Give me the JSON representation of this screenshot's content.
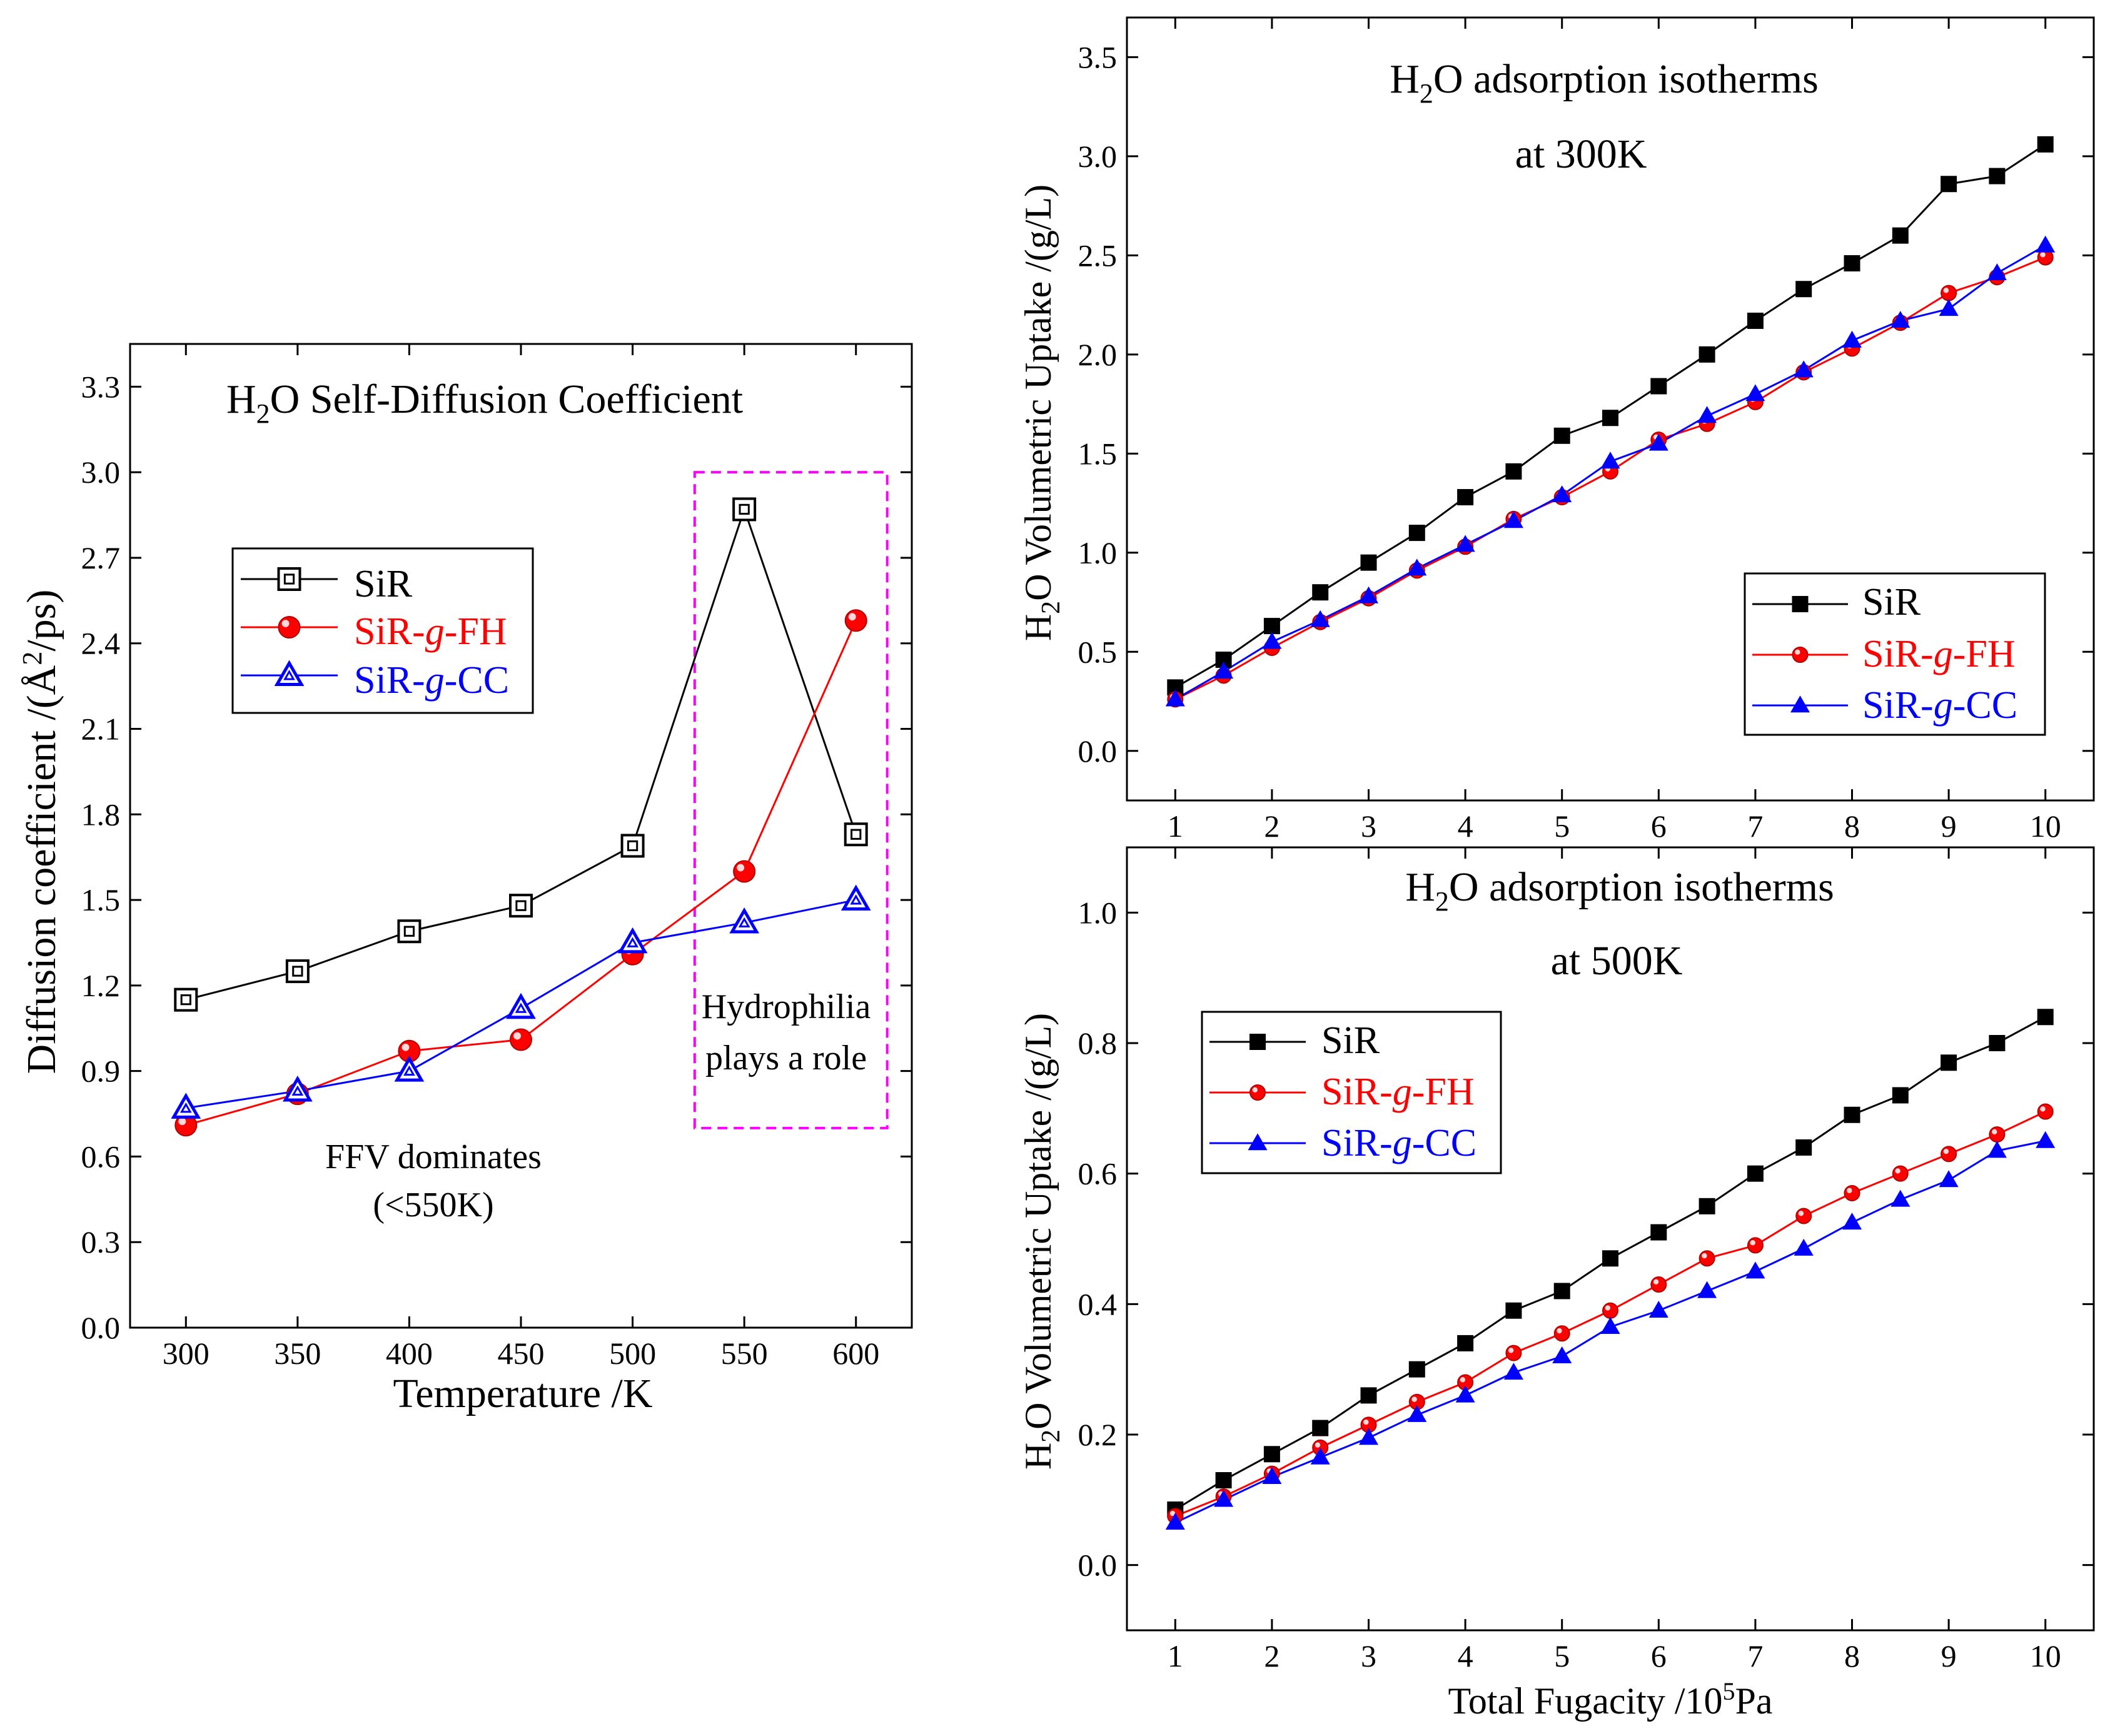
{
  "chart_data": [
    {
      "id": "diffusion",
      "type": "line",
      "title_parts": [
        "H",
        "2",
        "O Self-Diffusion Coefficient"
      ],
      "xlabel": "Temperature /K",
      "ylabel_parts": [
        "Diffusion coefficient /(",
        "Å",
        "2",
        "/ps)"
      ],
      "x": [
        300,
        350,
        400,
        450,
        500,
        550,
        600
      ],
      "xlim": [
        275,
        625
      ],
      "ylim": [
        0,
        3.45
      ],
      "xticks": [
        "300",
        "350",
        "400",
        "450",
        "500",
        "550",
        "600"
      ],
      "yticks": [
        "0.0",
        "0.3",
        "0.6",
        "0.9",
        "1.2",
        "1.5",
        "1.8",
        "2.1",
        "2.4",
        "2.7",
        "3.0",
        "3.3"
      ],
      "series": [
        {
          "name": "SiR",
          "color": "#000000",
          "marker": "square-open",
          "values": [
            1.15,
            1.25,
            1.39,
            1.48,
            1.69,
            2.87,
            1.73
          ]
        },
        {
          "name": "SiR-g-FH",
          "name_parts": [
            "SiR-",
            "g",
            "-FH"
          ],
          "color": "#ff0000",
          "marker": "sphere",
          "values": [
            0.71,
            0.82,
            0.97,
            1.01,
            1.31,
            1.6,
            2.48
          ]
        },
        {
          "name": "SiR-g-CC",
          "name_parts": [
            "SiR-",
            "g",
            "-CC"
          ],
          "color": "#0000ff",
          "marker": "triangle-open",
          "values": [
            0.77,
            0.83,
            0.9,
            1.12,
            1.35,
            1.42,
            1.5
          ]
        }
      ],
      "annotations": {
        "ffv_line1": "FFV dominates",
        "ffv_line2": "(<550K)",
        "hydro_line1": "Hydrophilia",
        "hydro_line2": "plays a role",
        "highlight_x_range": [
          525,
          600
        ],
        "highlight_y_range": [
          0.7,
          3.0
        ],
        "highlight_color": "#ff00ff"
      },
      "legend": "upper-left"
    },
    {
      "id": "iso300",
      "type": "line",
      "title_line1_parts": [
        "H",
        "2",
        "O adsorption isotherms"
      ],
      "title_line2": "at 300K",
      "xlabel": "",
      "ylabel_parts": [
        "H",
        "2",
        "O Volumetric Uptake /(g/L)"
      ],
      "x": [
        1,
        1.5,
        2,
        2.5,
        3,
        3.5,
        4,
        4.5,
        5,
        5.5,
        6,
        6.5,
        7,
        7.5,
        8,
        8.5,
        9,
        9.5,
        10
      ],
      "xlim": [
        0.5,
        10.5
      ],
      "ylim": [
        -0.25,
        3.7
      ],
      "xticks": [
        "1",
        "2",
        "3",
        "4",
        "5",
        "6",
        "7",
        "8",
        "9",
        "10"
      ],
      "yticks": [
        "0.0",
        "0.5",
        "1.0",
        "1.5",
        "2.0",
        "2.5",
        "3.0",
        "3.5"
      ],
      "series": [
        {
          "name": "SiR",
          "color": "#000000",
          "marker": "square",
          "values": [
            0.32,
            0.46,
            0.63,
            0.8,
            0.95,
            1.1,
            1.28,
            1.41,
            1.59,
            1.68,
            1.84,
            2.0,
            2.17,
            2.33,
            2.46,
            2.6,
            2.86,
            2.9,
            3.06
          ]
        },
        {
          "name": "SiR-g-FH",
          "name_parts": [
            "SiR-",
            "g",
            "-FH"
          ],
          "color": "#ff0000",
          "marker": "sphere",
          "values": [
            0.26,
            0.38,
            0.52,
            0.65,
            0.77,
            0.91,
            1.03,
            1.17,
            1.28,
            1.41,
            1.57,
            1.65,
            1.76,
            1.91,
            2.03,
            2.16,
            2.31,
            2.39,
            2.49
          ]
        },
        {
          "name": "SiR-g-CC",
          "name_parts": [
            "SiR-",
            "g",
            "-CC"
          ],
          "color": "#0000ff",
          "marker": "triangle",
          "values": [
            0.26,
            0.4,
            0.55,
            0.66,
            0.78,
            0.92,
            1.04,
            1.16,
            1.29,
            1.46,
            1.55,
            1.69,
            1.8,
            1.92,
            2.07,
            2.17,
            2.23,
            2.41,
            2.55
          ]
        }
      ],
      "legend": "lower-right"
    },
    {
      "id": "iso500",
      "type": "line",
      "title_line1_parts": [
        "H",
        "2",
        "O adsorption isotherms"
      ],
      "title_line2": "at 500K",
      "xlabel_parts": [
        "Total Fugacity /10",
        "5",
        "Pa"
      ],
      "ylabel_parts": [
        "H",
        "2",
        "O Volumetric Uptake /(g/L)"
      ],
      "x": [
        1,
        1.5,
        2,
        2.5,
        3,
        3.5,
        4,
        4.5,
        5,
        5.5,
        6,
        6.5,
        7,
        7.5,
        8,
        8.5,
        9,
        9.5,
        10
      ],
      "xlim": [
        0.5,
        10.5
      ],
      "ylim": [
        -0.1,
        1.1
      ],
      "xticks": [
        "1",
        "2",
        "3",
        "4",
        "5",
        "6",
        "7",
        "8",
        "9",
        "10"
      ],
      "yticks": [
        "0.0",
        "0.2",
        "0.4",
        "0.6",
        "0.8",
        "1.0"
      ],
      "series": [
        {
          "name": "SiR",
          "color": "#000000",
          "marker": "square",
          "values": [
            0.085,
            0.13,
            0.17,
            0.21,
            0.26,
            0.3,
            0.34,
            0.39,
            0.42,
            0.47,
            0.51,
            0.55,
            0.6,
            0.64,
            0.69,
            0.72,
            0.77,
            0.8,
            0.84
          ]
        },
        {
          "name": "SiR-g-FH",
          "name_parts": [
            "SiR-",
            "g",
            "-FH"
          ],
          "color": "#ff0000",
          "marker": "sphere",
          "values": [
            0.075,
            0.105,
            0.14,
            0.18,
            0.215,
            0.25,
            0.28,
            0.325,
            0.355,
            0.39,
            0.43,
            0.47,
            0.49,
            0.535,
            0.57,
            0.6,
            0.63,
            0.66,
            0.695
          ]
        },
        {
          "name": "SiR-g-CC",
          "name_parts": [
            "SiR-",
            "g",
            "-CC"
          ],
          "color": "#0000ff",
          "marker": "triangle",
          "values": [
            0.065,
            0.1,
            0.135,
            0.165,
            0.195,
            0.23,
            0.26,
            0.295,
            0.32,
            0.365,
            0.39,
            0.42,
            0.45,
            0.485,
            0.525,
            0.56,
            0.59,
            0.635,
            0.65
          ]
        }
      ],
      "legend": "upper-left"
    }
  ]
}
